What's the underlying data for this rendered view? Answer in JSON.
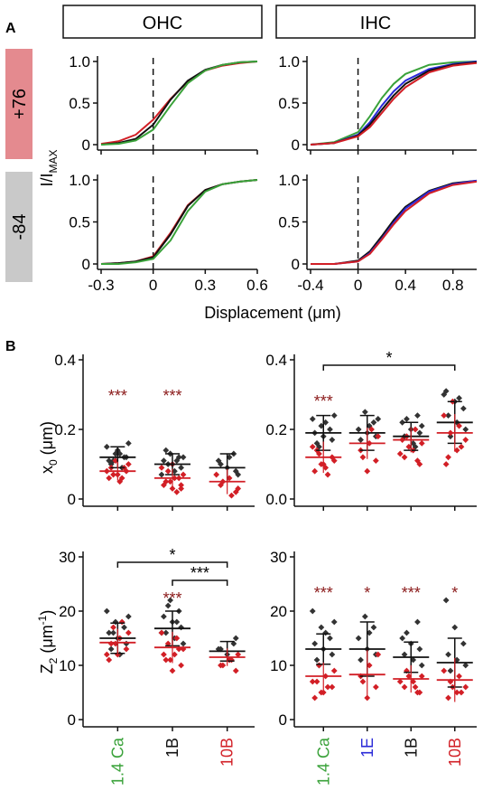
{
  "panel_letters": {
    "a": "A",
    "b": "B"
  },
  "header_labels": {
    "ohc": "OHC",
    "ihc": "IHC"
  },
  "voltage_labels": {
    "top": "+76",
    "bottom": "-84"
  },
  "colors": {
    "black": "#111111",
    "red": "#d21f26",
    "green": "#3aa23a",
    "blue": "#2a2ad8",
    "pink_band": "#e48a8f",
    "gray_band": "#c9c9c9",
    "mean_line": "#111111",
    "median_line": "#d21f26",
    "dark_red_text": "#8b1a1a"
  },
  "panel_a": {
    "y_axis_label": "I/I",
    "y_axis_label_sub": "MAX",
    "x_axis_label": "Displacement (μm)",
    "y_ticks": [
      "0",
      "0.5",
      "1.0"
    ],
    "ohc_x_ticks": [
      "-0.3",
      "0",
      "0.3",
      "0.6"
    ],
    "ihc_x_ticks": [
      "-0.4",
      "0",
      "0.4",
      "0.8"
    ]
  },
  "panel_b": {
    "x0_label": "x",
    "x0_sub": "0",
    "x0_unit": " (μm)",
    "z2_label": "Z",
    "z2_sub": "2",
    "z2_unit_open": " (μm",
    "z2_unit_sup": "-1",
    "z2_unit_close": ")",
    "x0_ticks": [
      "0",
      "0.2",
      "0.4"
    ],
    "x0_ticks_right": [
      "0.0",
      "0.2",
      "0.4"
    ],
    "z2_ticks": [
      "0",
      "10",
      "20",
      "30"
    ],
    "ohc_categories": [
      "1.4 Ca",
      "1B",
      "10B"
    ],
    "ihc_categories": [
      "1.4 Ca",
      "1E",
      "1B",
      "10B"
    ],
    "category_colors": {
      "1.4 Ca": "#3aa23a",
      "1E": "#2a2ad8",
      "1B": "#111111",
      "10B": "#d21f26"
    }
  },
  "chart_data": [
    {
      "type": "line",
      "title": "OHC +76",
      "xlim": [
        -0.3,
        0.6
      ],
      "ylim": [
        0,
        1.0
      ],
      "series": [
        {
          "color": "#d21f26",
          "x": [
            -0.3,
            -0.2,
            -0.1,
            0.0,
            0.1,
            0.2,
            0.3,
            0.4,
            0.5,
            0.6
          ],
          "y": [
            0.01,
            0.04,
            0.12,
            0.3,
            0.55,
            0.76,
            0.89,
            0.95,
            0.98,
            1.0
          ]
        },
        {
          "color": "#111111",
          "x": [
            -0.3,
            -0.2,
            -0.1,
            0.0,
            0.1,
            0.2,
            0.3,
            0.4,
            0.5,
            0.6
          ],
          "y": [
            0.0,
            0.02,
            0.07,
            0.24,
            0.54,
            0.77,
            0.9,
            0.96,
            0.99,
            1.0
          ]
        },
        {
          "color": "#3aa23a",
          "x": [
            -0.3,
            -0.2,
            -0.1,
            0.0,
            0.1,
            0.2,
            0.3,
            0.4,
            0.5,
            0.6
          ],
          "y": [
            0.0,
            0.01,
            0.05,
            0.18,
            0.47,
            0.74,
            0.89,
            0.96,
            0.99,
            1.0
          ]
        }
      ]
    },
    {
      "type": "line",
      "title": "OHC -84",
      "xlim": [
        -0.3,
        0.6
      ],
      "ylim": [
        0,
        1.0
      ],
      "series": [
        {
          "color": "#d21f26",
          "x": [
            -0.3,
            -0.2,
            -0.1,
            0.0,
            0.1,
            0.2,
            0.3,
            0.4,
            0.5,
            0.6
          ],
          "y": [
            0.0,
            0.01,
            0.03,
            0.09,
            0.37,
            0.7,
            0.88,
            0.95,
            0.98,
            1.0
          ]
        },
        {
          "color": "#111111",
          "x": [
            -0.3,
            -0.2,
            -0.1,
            0.0,
            0.1,
            0.2,
            0.3,
            0.4,
            0.5,
            0.6
          ],
          "y": [
            0.0,
            0.01,
            0.03,
            0.08,
            0.35,
            0.69,
            0.88,
            0.95,
            0.98,
            1.0
          ]
        },
        {
          "color": "#3aa23a",
          "x": [
            -0.3,
            -0.2,
            -0.1,
            0.0,
            0.1,
            0.2,
            0.3,
            0.4,
            0.5,
            0.6
          ],
          "y": [
            0.0,
            0.0,
            0.02,
            0.06,
            0.28,
            0.63,
            0.86,
            0.95,
            0.98,
            1.0
          ]
        }
      ]
    },
    {
      "type": "line",
      "title": "IHC +76",
      "xlim": [
        -0.4,
        1.0
      ],
      "ylim": [
        0,
        1.0
      ],
      "series": [
        {
          "color": "#3aa23a",
          "x": [
            -0.4,
            -0.2,
            0.0,
            0.1,
            0.2,
            0.3,
            0.4,
            0.6,
            0.8,
            1.0
          ],
          "y": [
            0.0,
            0.03,
            0.15,
            0.34,
            0.56,
            0.73,
            0.85,
            0.96,
            0.99,
            1.0
          ]
        },
        {
          "color": "#2a2ad8",
          "x": [
            -0.4,
            -0.2,
            0.0,
            0.1,
            0.2,
            0.3,
            0.4,
            0.6,
            0.8,
            1.0
          ],
          "y": [
            0.0,
            0.02,
            0.12,
            0.27,
            0.47,
            0.64,
            0.77,
            0.91,
            0.97,
            1.0
          ]
        },
        {
          "color": "#111111",
          "x": [
            -0.4,
            -0.2,
            0.0,
            0.1,
            0.2,
            0.3,
            0.4,
            0.6,
            0.8,
            1.0
          ],
          "y": [
            0.0,
            0.02,
            0.11,
            0.24,
            0.42,
            0.59,
            0.73,
            0.89,
            0.96,
            0.99
          ]
        },
        {
          "color": "#d21f26",
          "x": [
            -0.4,
            -0.2,
            0.0,
            0.1,
            0.2,
            0.3,
            0.4,
            0.6,
            0.8,
            1.0
          ],
          "y": [
            0.0,
            0.02,
            0.1,
            0.21,
            0.38,
            0.55,
            0.69,
            0.87,
            0.95,
            0.98
          ]
        }
      ]
    },
    {
      "type": "line",
      "title": "IHC -84",
      "xlim": [
        -0.4,
        1.0
      ],
      "ylim": [
        0,
        1.0
      ],
      "series": [
        {
          "color": "#111111",
          "x": [
            -0.4,
            -0.2,
            0.0,
            0.1,
            0.2,
            0.3,
            0.4,
            0.6,
            0.8,
            1.0
          ],
          "y": [
            0.0,
            0.0,
            0.04,
            0.15,
            0.33,
            0.52,
            0.68,
            0.87,
            0.96,
            0.99
          ]
        },
        {
          "color": "#2a2ad8",
          "x": [
            -0.4,
            -0.2,
            0.0,
            0.1,
            0.2,
            0.3,
            0.4,
            0.6,
            0.8,
            1.0
          ],
          "y": [
            0.0,
            0.0,
            0.03,
            0.13,
            0.3,
            0.49,
            0.66,
            0.86,
            0.95,
            0.99
          ]
        },
        {
          "color": "#d21f26",
          "x": [
            -0.4,
            -0.2,
            0.0,
            0.1,
            0.2,
            0.3,
            0.4,
            0.6,
            0.8,
            1.0
          ],
          "y": [
            0.0,
            0.0,
            0.03,
            0.12,
            0.29,
            0.47,
            0.63,
            0.84,
            0.94,
            0.98
          ]
        }
      ]
    },
    {
      "type": "scatter",
      "title": "OHC x0",
      "ylim": [
        0,
        0.4
      ],
      "categories": [
        "1.4 Ca",
        "1B",
        "10B"
      ],
      "groups": [
        {
          "mean": 0.12,
          "sd": 0.03,
          "median": 0.08,
          "annotation": "***",
          "black": [
            0.15,
            0.13,
            0.12,
            0.11,
            0.14,
            0.12,
            0.1,
            0.13,
            0.16,
            0.11,
            0.09
          ],
          "red": [
            0.06,
            0.07,
            0.08,
            0.09,
            0.05,
            0.1,
            0.07,
            0.06,
            0.08,
            0.11,
            0.09
          ]
        },
        {
          "mean": 0.1,
          "sd": 0.03,
          "median": 0.06,
          "annotation": "***",
          "black": [
            0.13,
            0.12,
            0.11,
            0.1,
            0.09,
            0.14,
            0.08,
            0.12,
            0.1,
            0.11,
            0.07,
            0.13
          ],
          "red": [
            0.03,
            0.04,
            0.05,
            0.06,
            0.07,
            0.08,
            0.02,
            0.09,
            0.05,
            0.06,
            0.04,
            0.1,
            0.03
          ]
        },
        {
          "mean": 0.09,
          "sd": 0.04,
          "median": 0.05,
          "black": [
            0.13,
            0.11,
            0.09,
            0.08,
            0.1,
            0.12,
            0.07
          ],
          "red": [
            0.02,
            0.04,
            0.06,
            0.03,
            0.05,
            0.01,
            0.07
          ]
        }
      ]
    },
    {
      "type": "scatter",
      "title": "IHC x0",
      "ylim": [
        0,
        0.4
      ],
      "categories": [
        "1.4 Ca",
        "1E",
        "1B",
        "10B"
      ],
      "bracket": {
        "from": "1.4 Ca",
        "to": "10B",
        "label": "*"
      },
      "groups": [
        {
          "mean": 0.19,
          "sd": 0.05,
          "median": 0.12,
          "annotation": "***",
          "black": [
            0.23,
            0.21,
            0.2,
            0.19,
            0.18,
            0.17,
            0.16,
            0.22,
            0.24,
            0.15
          ],
          "red": [
            0.08,
            0.1,
            0.12,
            0.14,
            0.09,
            0.11,
            0.13,
            0.07,
            0.15,
            0.1
          ]
        },
        {
          "mean": 0.19,
          "sd": 0.05,
          "median": 0.16,
          "black": [
            0.25,
            0.22,
            0.2,
            0.19,
            0.18,
            0.17,
            0.21,
            0.23
          ],
          "red": [
            0.08,
            0.11,
            0.14,
            0.16,
            0.18,
            0.12,
            0.2
          ]
        },
        {
          "mean": 0.18,
          "sd": 0.04,
          "median": 0.17,
          "black": [
            0.24,
            0.22,
            0.2,
            0.19,
            0.18,
            0.16,
            0.21,
            0.23,
            0.15
          ],
          "red": [
            0.1,
            0.12,
            0.14,
            0.16,
            0.18,
            0.2,
            0.13,
            0.15,
            0.11,
            0.17
          ]
        },
        {
          "mean": 0.22,
          "sd": 0.06,
          "median": 0.19,
          "black": [
            0.31,
            0.28,
            0.26,
            0.24,
            0.22,
            0.2,
            0.18,
            0.29,
            0.3
          ],
          "red": [
            0.12,
            0.14,
            0.17,
            0.19,
            0.21,
            0.24,
            0.28,
            0.15,
            0.1
          ]
        }
      ]
    },
    {
      "type": "scatter",
      "title": "OHC Z2",
      "ylim": [
        0,
        30
      ],
      "categories": [
        "1.4 Ca",
        "1B",
        "10B"
      ],
      "brackets": [
        {
          "from": "1.4 Ca",
          "to": "10B",
          "label": "*"
        },
        {
          "from": "1B",
          "to": "10B",
          "label": "***"
        }
      ],
      "groups": [
        {
          "mean": 15.0,
          "sd": 2.8,
          "median": 14.2,
          "black": [
            20,
            18,
            17,
            16,
            15,
            14,
            13,
            12,
            19,
            16
          ],
          "red": [
            11,
            12,
            13,
            14,
            15,
            16,
            17,
            18,
            12,
            14
          ]
        },
        {
          "mean": 16.8,
          "sd": 3.2,
          "median": 13.3,
          "annotation": "***",
          "black": [
            22,
            20,
            19,
            18,
            17,
            16,
            15,
            14,
            21,
            18,
            16
          ],
          "red": [
            9,
            10,
            11,
            12,
            13,
            14,
            15,
            16,
            11,
            13,
            12
          ]
        },
        {
          "mean": 12.6,
          "sd": 1.8,
          "median": 11.5,
          "black": [
            14,
            13,
            12,
            15,
            13,
            11
          ],
          "red": [
            9,
            10,
            11,
            12,
            10,
            11
          ]
        }
      ]
    },
    {
      "type": "scatter",
      "title": "IHC Z2",
      "ylim": [
        0,
        30
      ],
      "categories": [
        "1.4 Ca",
        "1E",
        "1B",
        "10B"
      ],
      "groups": [
        {
          "mean": 13.0,
          "sd": 2.8,
          "median": 8.0,
          "annotation": "***",
          "black": [
            20,
            17,
            15,
            14,
            13,
            12,
            11,
            16,
            18,
            10
          ],
          "red": [
            4,
            5,
            6,
            7,
            8,
            9,
            10,
            6,
            7,
            5
          ]
        },
        {
          "mean": 13.0,
          "sd": 5.0,
          "median": 8.3,
          "annotation": "*",
          "black": [
            19,
            17,
            15,
            13,
            12,
            11,
            16
          ],
          "red": [
            4,
            6,
            8,
            10,
            12,
            7
          ]
        },
        {
          "mean": 11.5,
          "sd": 2.8,
          "median": 7.5,
          "annotation": "***",
          "black": [
            18,
            15,
            14,
            13,
            12,
            11,
            10,
            16
          ],
          "red": [
            5,
            6,
            7,
            8,
            9,
            6,
            7,
            8,
            5
          ]
        },
        {
          "mean": 10.5,
          "sd": 4.5,
          "median": 7.3,
          "annotation": "*",
          "black": [
            22,
            17,
            14,
            12,
            11,
            10,
            9
          ],
          "red": [
            4,
            5,
            6,
            7,
            8,
            9,
            6,
            5
          ]
        }
      ]
    }
  ]
}
